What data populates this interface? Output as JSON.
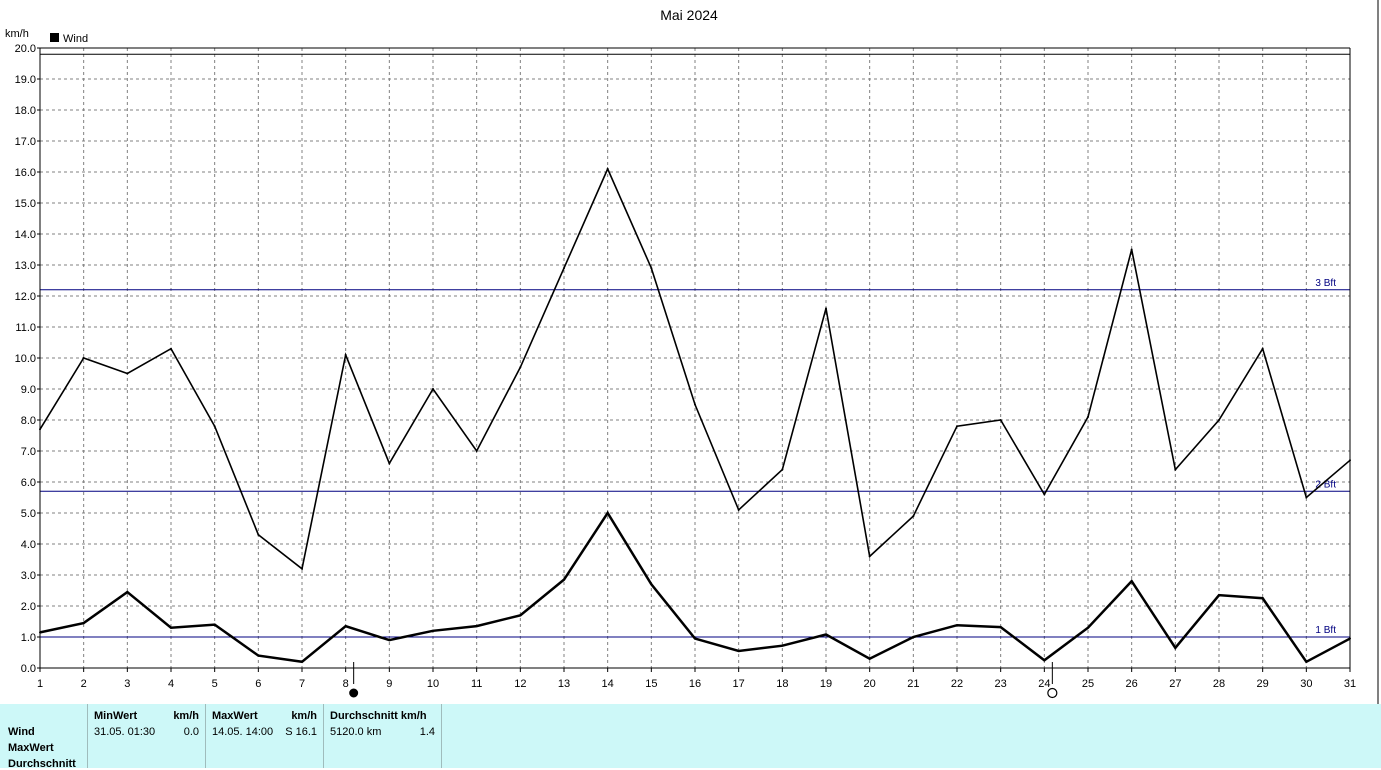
{
  "chart_data": {
    "type": "line",
    "title": "Mai 2024",
    "ylabel": "km/h",
    "xlabel": "",
    "legend": {
      "position": "top-left",
      "entries": [
        {
          "label": "Wind",
          "color": "#000000"
        }
      ]
    },
    "grid": true,
    "xlim": [
      1,
      31
    ],
    "ylim": [
      0,
      20
    ],
    "x_ticks": [
      "1",
      "2",
      "3",
      "4",
      "5",
      "6",
      "7",
      "8",
      "9",
      "10",
      "11",
      "12",
      "13",
      "14",
      "15",
      "16",
      "17",
      "18",
      "19",
      "20",
      "21",
      "22",
      "23",
      "24",
      "25",
      "26",
      "27",
      "28",
      "29",
      "30",
      "31"
    ],
    "y_ticks": [
      "0.0",
      "1.0",
      "2.0",
      "3.0",
      "4.0",
      "5.0",
      "6.0",
      "7.0",
      "8.0",
      "9.0",
      "10.0",
      "11.0",
      "12.0",
      "13.0",
      "14.0",
      "15.0",
      "16.0",
      "17.0",
      "18.0",
      "19.0",
      "20.0"
    ],
    "x": [
      1,
      2,
      3,
      4,
      5,
      6,
      7,
      8,
      9,
      10,
      11,
      12,
      13,
      14,
      15,
      16,
      17,
      18,
      19,
      20,
      21,
      22,
      23,
      24,
      25,
      26,
      27,
      28,
      29,
      30,
      31
    ],
    "series": [
      {
        "name": "Wind",
        "style": "max",
        "color": "#000000",
        "values": [
          7.7,
          10.0,
          9.5,
          10.3,
          7.8,
          4.3,
          3.2,
          10.1,
          6.6,
          9.0,
          7.0,
          9.7,
          12.9,
          16.1,
          12.9,
          8.5,
          5.1,
          6.4,
          11.6,
          3.6,
          4.9,
          7.8,
          8.0,
          5.6,
          8.1,
          13.5,
          6.4,
          8.0,
          10.3,
          5.5,
          6.7
        ]
      },
      {
        "name": "Wind",
        "style": "average",
        "color": "#000000",
        "values": [
          1.15,
          1.45,
          2.45,
          1.3,
          1.4,
          0.4,
          0.2,
          1.35,
          0.9,
          1.2,
          1.35,
          1.7,
          2.85,
          5.0,
          2.7,
          0.95,
          0.55,
          0.72,
          1.08,
          0.3,
          1.0,
          1.38,
          1.32,
          0.25,
          1.3,
          2.8,
          0.65,
          2.35,
          2.25,
          0.2,
          0.95
        ]
      }
    ],
    "reference_lines": [
      {
        "label": "1 Bft",
        "value": 1.0,
        "color": "#000080"
      },
      {
        "label": "2 Bft",
        "value": 5.7,
        "color": "#000080"
      },
      {
        "label": "3 Bft",
        "value": 12.2,
        "color": "#000080"
      }
    ],
    "top_line_value": 19.8,
    "moon_phases": [
      {
        "day": 8,
        "symbol": "●",
        "phase": "new"
      },
      {
        "day": 24,
        "symbol": "○",
        "phase": "full"
      }
    ]
  },
  "stats": {
    "rows": [
      "Wind",
      "MaxWert",
      "Durchschnitt"
    ],
    "min": {
      "header": "MinWert",
      "unit": "km/h",
      "datetime": "31.05.  01:30",
      "value": "0.0"
    },
    "max": {
      "header": "MaxWert",
      "unit": "km/h",
      "datetime": "14.05.  14:00",
      "value": "S 16.1"
    },
    "avg": {
      "header": "Durchschnitt km/h",
      "datetime": "5120.0 km",
      "value": "1.4"
    }
  }
}
